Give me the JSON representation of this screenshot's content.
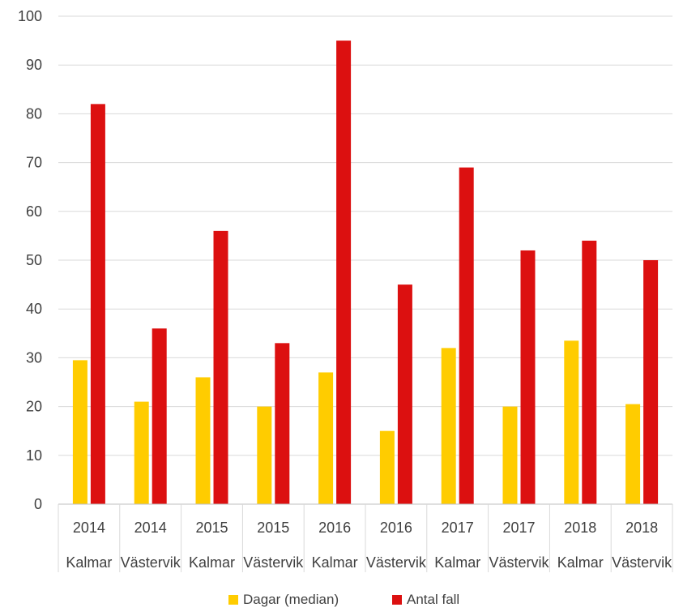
{
  "chart_data": {
    "type": "bar",
    "categories": [
      {
        "year": "2014",
        "place": "Kalmar"
      },
      {
        "year": "2014",
        "place": "Västervik"
      },
      {
        "year": "2015",
        "place": "Kalmar"
      },
      {
        "year": "2015",
        "place": "Västervik"
      },
      {
        "year": "2016",
        "place": "Kalmar"
      },
      {
        "year": "2016",
        "place": "Västervik"
      },
      {
        "year": "2017",
        "place": "Kalmar"
      },
      {
        "year": "2017",
        "place": "Västervik"
      },
      {
        "year": "2018",
        "place": "Kalmar"
      },
      {
        "year": "2018",
        "place": "Västervik"
      }
    ],
    "series": [
      {
        "name": "Dagar (median)",
        "color": "#FFCC00",
        "values": [
          29.5,
          21,
          26,
          20,
          27,
          15,
          32,
          20,
          33.5,
          20.5
        ]
      },
      {
        "name": "Antal fall",
        "color": "#DC1010",
        "values": [
          82,
          36,
          56,
          33,
          95,
          45,
          69,
          52,
          54,
          50
        ]
      }
    ],
    "ylim": [
      0,
      100
    ],
    "yticks": [
      "0",
      "10",
      "20",
      "30",
      "40",
      "50",
      "60",
      "70",
      "80",
      "90",
      "100"
    ],
    "grid": true,
    "legend_position": "bottom"
  }
}
